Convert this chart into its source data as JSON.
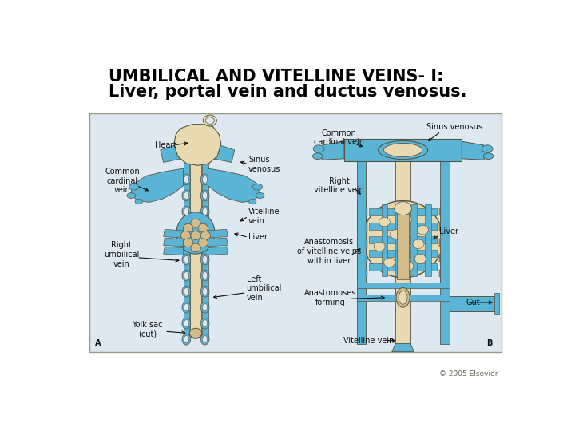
{
  "title_line1": "UMBILICAL AND VITELLINE VEINS- I:",
  "title_line2": "Liver, portal vein and ductus venosus.",
  "copyright": "© 2005 Elsevier",
  "bg": "#ffffff",
  "box_bg": "#dde8f0",
  "blue": "#5ab4d6",
  "tan": "#d4bc8a",
  "tan_light": "#e8d9b0",
  "outline": "#555544",
  "title_fs": 15,
  "label_fs": 7.0,
  "copy_fs": 6.5,
  "fig_w": 7.2,
  "fig_h": 5.4,
  "dpi": 100
}
